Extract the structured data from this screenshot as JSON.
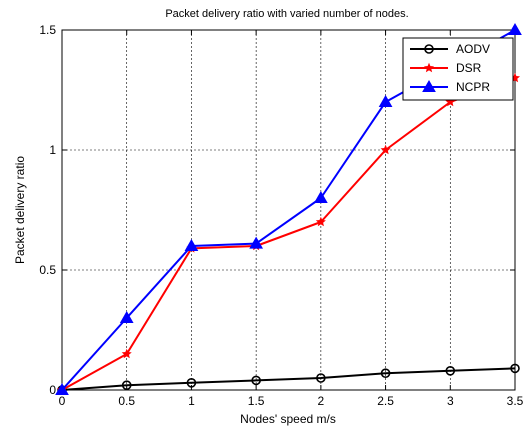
{
  "chart_data": {
    "type": "line",
    "title": "Packet delivery ratio with varied number of nodes.",
    "xlabel": "Nodes' speed m/s",
    "ylabel": "Packet delivery ratio",
    "xlim": [
      0,
      3.5
    ],
    "ylim": [
      0,
      1.5
    ],
    "x_ticks": [
      "0",
      "0.5",
      "1",
      "1.5",
      "2",
      "2.5",
      "3",
      "3.5"
    ],
    "y_ticks": [
      "0",
      "0.5",
      "1",
      "1.5"
    ],
    "grid": true,
    "legend_position": "top-right",
    "x": [
      0,
      0.5,
      1,
      1.5,
      2,
      2.5,
      3,
      3.5
    ],
    "series": [
      {
        "name": "AODV",
        "color": "#000000",
        "marker": "circle",
        "values": [
          0,
          0.02,
          0.03,
          0.04,
          0.05,
          0.07,
          0.08,
          0.09
        ]
      },
      {
        "name": "DSR",
        "color": "#ff0000",
        "marker": "star",
        "values": [
          0,
          0.15,
          0.59,
          0.6,
          0.7,
          1.0,
          1.2,
          1.3
        ]
      },
      {
        "name": "NCPR",
        "color": "#0000ff",
        "marker": "triangle",
        "values": [
          0,
          0.3,
          0.6,
          0.61,
          0.8,
          1.2,
          1.35,
          1.5
        ]
      }
    ]
  }
}
